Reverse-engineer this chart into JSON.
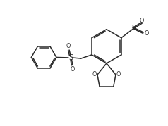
{
  "background": "#ffffff",
  "line_color": "#2a2a2a",
  "line_width": 1.1,
  "fig_width": 2.38,
  "fig_height": 1.79,
  "dpi": 100,
  "xlim": [
    0,
    10
  ],
  "ylim": [
    0,
    7.5
  ]
}
